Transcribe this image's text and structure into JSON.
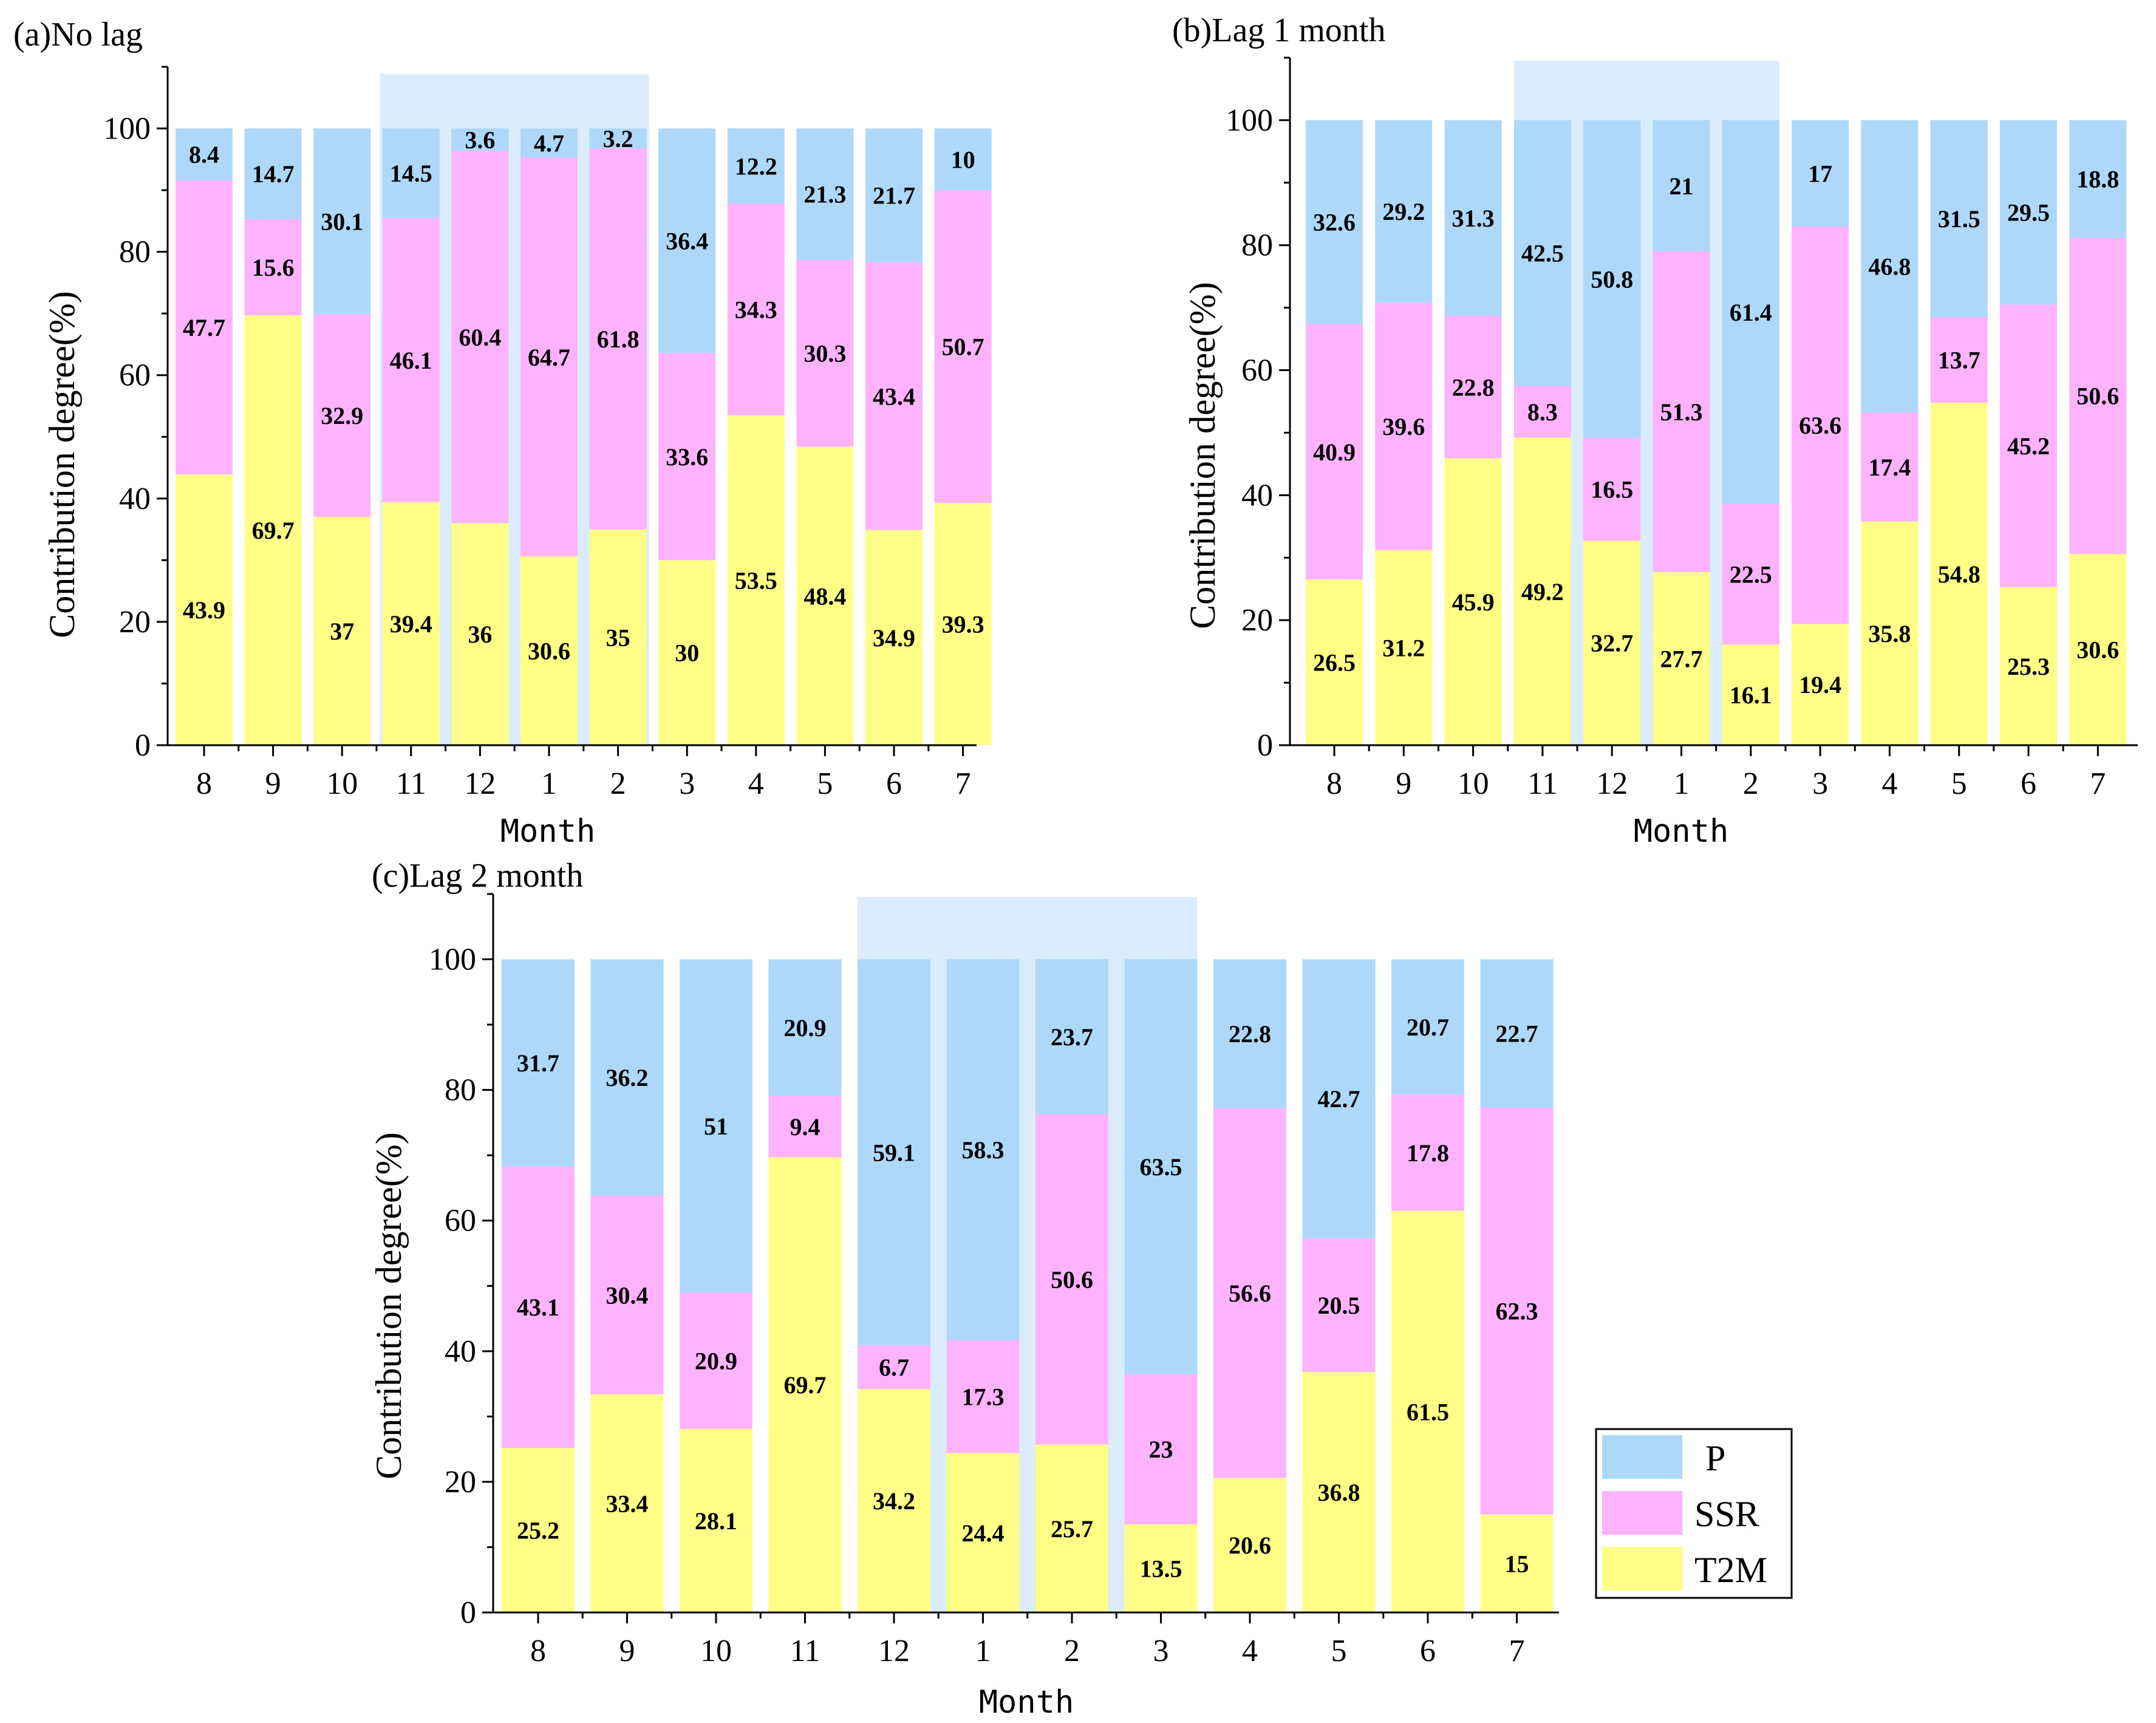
{
  "colors": {
    "P": "#add8f9",
    "SSR": "#ffb3ff",
    "T2M": "#ffff88",
    "highlight": "#dbecfc"
  },
  "legend": {
    "items": [
      {
        "key": "P",
        "label": "P"
      },
      {
        "key": "SSR",
        "label": "SSR"
      },
      {
        "key": "T2M",
        "label": "T2M"
      }
    ]
  },
  "chart_data": [
    {
      "type": "bar",
      "stacked": true,
      "title": "(a)No lag",
      "xlabel": "Month",
      "ylabel": "Contribution degree(%)",
      "ylim": [
        0,
        110
      ],
      "yticks": [
        0,
        20,
        40,
        60,
        80,
        100
      ],
      "highlight_months": [
        "11",
        "12",
        "1",
        "2"
      ],
      "categories": [
        "8",
        "9",
        "10",
        "11",
        "12",
        "1",
        "2",
        "3",
        "4",
        "5",
        "6",
        "7"
      ],
      "series": [
        {
          "name": "T2M",
          "values": [
            43.9,
            69.7,
            37,
            39.4,
            36,
            30.6,
            35,
            30,
            53.5,
            48.4,
            34.9,
            39.3
          ]
        },
        {
          "name": "SSR",
          "values": [
            47.7,
            15.6,
            32.9,
            46.1,
            60.4,
            64.7,
            61.8,
            33.6,
            34.3,
            30.3,
            43.4,
            50.7
          ]
        },
        {
          "name": "P",
          "values": [
            8.4,
            14.7,
            30.1,
            14.5,
            3.6,
            4.7,
            3.2,
            36.4,
            12.2,
            21.3,
            21.7,
            10
          ]
        }
      ]
    },
    {
      "type": "bar",
      "stacked": true,
      "title": "(b)Lag 1 month",
      "xlabel": "Month",
      "ylabel": "Contribution degree(%)",
      "ylim": [
        0,
        110
      ],
      "yticks": [
        0,
        20,
        40,
        60,
        80,
        100
      ],
      "highlight_months": [
        "11",
        "12",
        "1",
        "2"
      ],
      "categories": [
        "8",
        "9",
        "10",
        "11",
        "12",
        "1",
        "2",
        "3",
        "4",
        "5",
        "6",
        "7"
      ],
      "series": [
        {
          "name": "T2M",
          "values": [
            26.5,
            31.2,
            45.9,
            49.2,
            32.7,
            27.7,
            16.1,
            19.4,
            35.8,
            54.8,
            25.3,
            30.6
          ]
        },
        {
          "name": "SSR",
          "values": [
            40.9,
            39.6,
            22.8,
            8.3,
            16.5,
            51.3,
            22.5,
            63.6,
            17.4,
            13.7,
            45.2,
            50.6
          ]
        },
        {
          "name": "P",
          "values": [
            32.6,
            29.2,
            31.3,
            42.5,
            50.8,
            21,
            61.4,
            17,
            46.8,
            31.5,
            29.5,
            18.8
          ]
        }
      ]
    },
    {
      "type": "bar",
      "stacked": true,
      "title": "(c)Lag 2 month",
      "xlabel": "Month",
      "ylabel": "Contribution degree(%)",
      "ylim": [
        0,
        110
      ],
      "yticks": [
        0,
        20,
        40,
        60,
        80,
        100
      ],
      "highlight_months": [
        "12",
        "1",
        "2",
        "3"
      ],
      "categories": [
        "8",
        "9",
        "10",
        "11",
        "12",
        "1",
        "2",
        "3",
        "4",
        "5",
        "6",
        "7"
      ],
      "series": [
        {
          "name": "T2M",
          "values": [
            25.2,
            33.4,
            28.1,
            69.7,
            34.2,
            24.4,
            25.7,
            13.5,
            20.6,
            36.8,
            61.5,
            15
          ]
        },
        {
          "name": "SSR",
          "values": [
            43.1,
            30.4,
            20.9,
            9.4,
            6.7,
            17.3,
            50.6,
            23,
            56.6,
            20.5,
            17.8,
            62.3
          ]
        },
        {
          "name": "P",
          "values": [
            31.7,
            36.2,
            51,
            20.9,
            59.1,
            58.3,
            23.7,
            63.5,
            22.8,
            42.7,
            20.7,
            22.7
          ]
        }
      ]
    }
  ]
}
